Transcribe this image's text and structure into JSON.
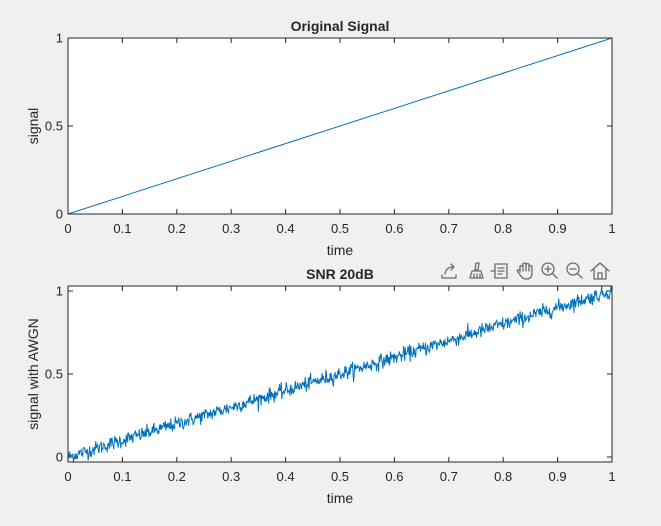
{
  "chart_data": [
    {
      "type": "line",
      "title": "Original Signal",
      "xlabel": "time",
      "ylabel": "signal",
      "xlim": [
        0,
        1
      ],
      "ylim": [
        0,
        1
      ],
      "xticks": [
        "0",
        "0.1",
        "0.2",
        "0.3",
        "0.4",
        "0.5",
        "0.6",
        "0.7",
        "0.8",
        "0.9",
        "1"
      ],
      "yticks": [
        "0",
        "0.5",
        "1"
      ],
      "grid": false,
      "series": [
        {
          "x": [
            0,
            1
          ],
          "y": [
            0,
            1
          ],
          "color": "#0072bd"
        }
      ]
    },
    {
      "type": "line",
      "title": "SNR 20dB",
      "xlabel": "time",
      "ylabel": "signal with AWGN",
      "xlim": [
        0,
        1
      ],
      "ylim": [
        -0.03,
        1.03
      ],
      "xticks": [
        "0",
        "0.1",
        "0.2",
        "0.3",
        "0.4",
        "0.5",
        "0.6",
        "0.7",
        "0.8",
        "0.9",
        "1"
      ],
      "yticks": [
        "0",
        "0.5",
        "1"
      ],
      "grid": false,
      "series": [
        {
          "description": "y = x + white Gaussian noise (20 dB SNR), 1001 samples on [0, 1]",
          "x_start": 0,
          "x_end": 1,
          "samples": 1001,
          "trend": [
            0,
            1
          ],
          "noise_std": 0.022,
          "color": "#0072bd"
        }
      ]
    }
  ],
  "toolbar": {
    "icons": [
      "export-icon",
      "brush-icon",
      "data-tips-icon",
      "pan-icon",
      "zoom-in-icon",
      "zoom-out-icon",
      "home-icon"
    ]
  },
  "colors": {
    "line": "#0072bd",
    "axes": "#262626",
    "figure_bg": "#f0f0f0",
    "axes_bg": "#ffffff"
  }
}
